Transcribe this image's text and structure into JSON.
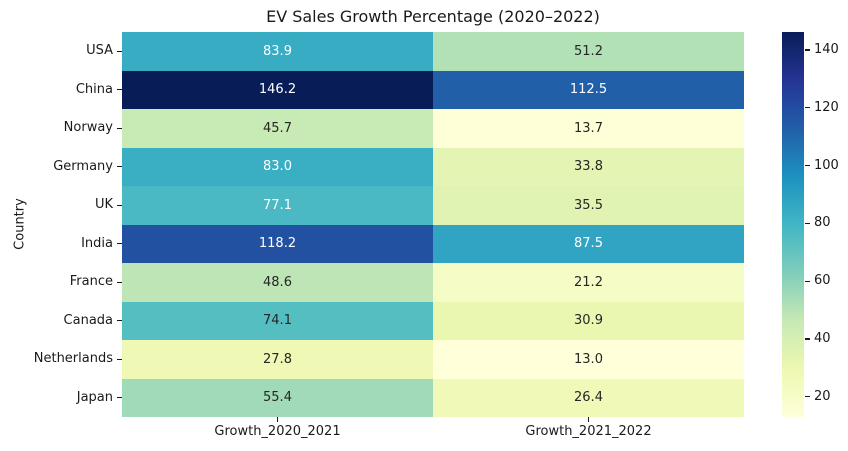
{
  "chart_data": {
    "type": "heatmap",
    "title": "EV Sales Growth Percentage (2020–2022)",
    "ylabel": "Country",
    "rows": [
      "USA",
      "China",
      "Norway",
      "Germany",
      "UK",
      "India",
      "France",
      "Canada",
      "Netherlands",
      "Japan"
    ],
    "columns": [
      "Growth_2020_2021",
      "Growth_2021_2022"
    ],
    "values": [
      [
        83.9,
        51.2
      ],
      [
        146.2,
        112.5
      ],
      [
        45.7,
        13.7
      ],
      [
        83.0,
        33.8
      ],
      [
        77.1,
        35.5
      ],
      [
        118.2,
        87.5
      ],
      [
        48.6,
        21.2
      ],
      [
        74.1,
        30.9
      ],
      [
        27.8,
        13.0
      ],
      [
        55.4,
        26.4
      ]
    ],
    "vmin": 13.0,
    "vmax": 146.2,
    "annot_decimals": 1,
    "colormap": {
      "name": "YlGnBu",
      "stops": [
        "#ffffd9",
        "#edf8b1",
        "#c7e9b4",
        "#7fcdbb",
        "#41b6c4",
        "#1d91c0",
        "#225ea8",
        "#253494",
        "#081d58"
      ]
    },
    "colorbar": {
      "position": "right",
      "ticks": [
        20,
        40,
        60,
        80,
        100,
        120,
        140
      ]
    },
    "annotation_text_colors": {
      "light": "#ffffff",
      "dark": "#262626"
    },
    "grid": false,
    "legend": false
  }
}
